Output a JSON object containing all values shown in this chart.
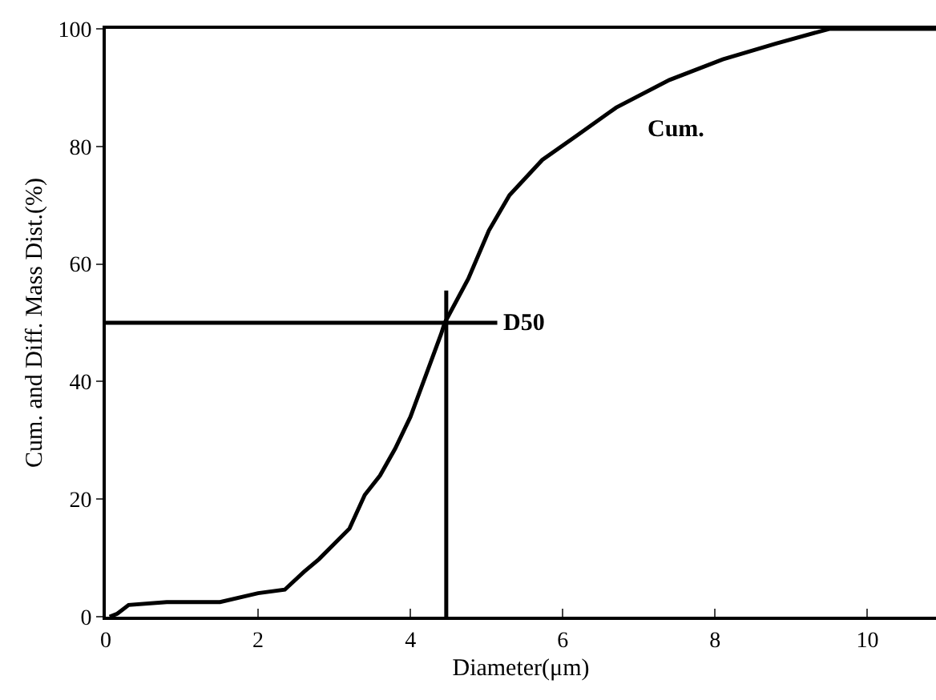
{
  "chart_data": {
    "type": "line",
    "xlabel": "Diameter(μm)",
    "ylabel": "Cum. and Diff. Mass Dist.(%)",
    "xlim": [
      0,
      10.9
    ],
    "xticks": [
      0,
      2,
      4,
      6,
      8,
      10
    ],
    "ylim": [
      0,
      100
    ],
    "yticks": [
      0,
      20,
      40,
      60,
      80,
      100
    ],
    "legend": false,
    "marker": "none",
    "line_style": "solid",
    "series": [
      {
        "name": "Cum.",
        "color": "#000000",
        "x": [
          0.05,
          0.15,
          0.3,
          0.8,
          1.5,
          2.0,
          2.35,
          2.6,
          2.8,
          3.2,
          3.4,
          3.6,
          3.8,
          4.0,
          4.2,
          4.4,
          4.45,
          4.76,
          5.03,
          5.3,
          5.73,
          6.17,
          6.7,
          7.4,
          8.1,
          8.8,
          9.5,
          10.9
        ],
        "values": [
          0,
          0.5,
          2,
          2.5,
          2.5,
          4,
          4.6,
          7.6,
          9.8,
          15,
          20.7,
          24,
          28.6,
          34,
          41,
          48,
          50,
          57.5,
          65.7,
          71.7,
          77.7,
          81.7,
          86.6,
          91.3,
          94.8,
          97.5,
          100,
          100
        ]
      },
      {
        "color": "#000000",
        "x": [
          0,
          5.14
        ],
        "values": [
          50,
          50
        ]
      },
      {
        "color": "#000000",
        "x": [
          4.47,
          4.47
        ],
        "values": [
          0,
          55.5
        ]
      }
    ],
    "annotations": [
      {
        "text": "D50",
        "x": 5.14,
        "y": 50
      }
    ]
  }
}
